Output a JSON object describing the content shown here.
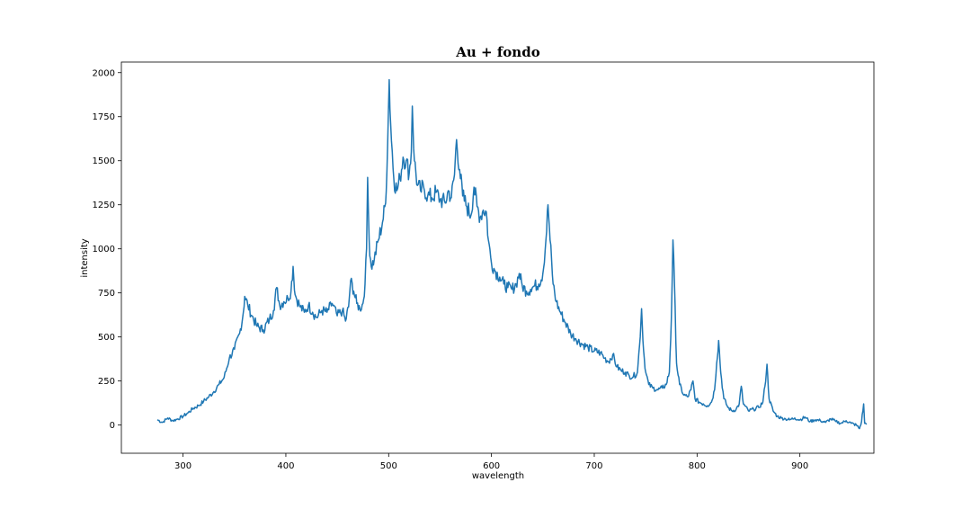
{
  "chart_data": {
    "type": "line",
    "title": "Au + fondo",
    "xlabel": "wavelength",
    "ylabel": "intensity",
    "xlim": [
      240,
      972
    ],
    "ylim": [
      -160,
      2060
    ],
    "xticks": [
      300,
      400,
      500,
      600,
      700,
      800,
      900
    ],
    "yticks": [
      0,
      250,
      500,
      750,
      1000,
      1250,
      1500,
      1750,
      2000
    ],
    "grid": false,
    "line_color": "#1f77b4",
    "series": [
      {
        "points": [
          [
            275,
            30
          ],
          [
            280,
            15
          ],
          [
            285,
            40
          ],
          [
            290,
            25
          ],
          [
            295,
            35
          ],
          [
            300,
            50
          ],
          [
            305,
            70
          ],
          [
            310,
            95
          ],
          [
            315,
            110
          ],
          [
            320,
            135
          ],
          [
            325,
            160
          ],
          [
            330,
            190
          ],
          [
            335,
            230
          ],
          [
            340,
            270
          ],
          [
            345,
            380
          ],
          [
            350,
            430
          ],
          [
            355,
            520
          ],
          [
            358,
            610
          ],
          [
            360,
            730
          ],
          [
            363,
            680
          ],
          [
            367,
            620
          ],
          [
            372,
            560
          ],
          [
            378,
            540
          ],
          [
            384,
            600
          ],
          [
            388,
            650
          ],
          [
            391,
            780
          ],
          [
            394,
            680
          ],
          [
            398,
            700
          ],
          [
            402,
            720
          ],
          [
            405,
            760
          ],
          [
            407,
            900
          ],
          [
            409,
            740
          ],
          [
            414,
            670
          ],
          [
            418,
            640
          ],
          [
            422,
            680
          ],
          [
            426,
            640
          ],
          [
            430,
            610
          ],
          [
            435,
            650
          ],
          [
            440,
            640
          ],
          [
            445,
            690
          ],
          [
            450,
            620
          ],
          [
            455,
            650
          ],
          [
            458,
            590
          ],
          [
            461,
            670
          ],
          [
            463,
            820
          ],
          [
            466,
            760
          ],
          [
            469,
            690
          ],
          [
            472,
            660
          ],
          [
            475,
            690
          ],
          [
            477,
            800
          ],
          [
            478.5,
            1000
          ],
          [
            479.5,
            1405
          ],
          [
            481,
            1050
          ],
          [
            483,
            900
          ],
          [
            486,
            940
          ],
          [
            490,
            1050
          ],
          [
            494,
            1150
          ],
          [
            497,
            1260
          ],
          [
            499,
            1600
          ],
          [
            500.5,
            1960
          ],
          [
            502,
            1700
          ],
          [
            505,
            1400
          ],
          [
            508,
            1330
          ],
          [
            511,
            1400
          ],
          [
            514,
            1520
          ],
          [
            517,
            1500
          ],
          [
            520,
            1430
          ],
          [
            522,
            1550
          ],
          [
            523,
            1810
          ],
          [
            525,
            1500
          ],
          [
            528,
            1360
          ],
          [
            531,
            1330
          ],
          [
            534,
            1350
          ],
          [
            538,
            1300
          ],
          [
            542,
            1290
          ],
          [
            546,
            1320
          ],
          [
            550,
            1280
          ],
          [
            555,
            1260
          ],
          [
            558,
            1330
          ],
          [
            561,
            1290
          ],
          [
            564,
            1420
          ],
          [
            566,
            1620
          ],
          [
            569,
            1450
          ],
          [
            572,
            1300
          ],
          [
            576,
            1240
          ],
          [
            580,
            1190
          ],
          [
            583,
            1350
          ],
          [
            586,
            1240
          ],
          [
            589,
            1180
          ],
          [
            592,
            1220
          ],
          [
            595,
            1210
          ],
          [
            597,
            1050
          ],
          [
            600,
            920
          ],
          [
            604,
            870
          ],
          [
            608,
            840
          ],
          [
            612,
            800
          ],
          [
            616,
            780
          ],
          [
            620,
            770
          ],
          [
            624,
            800
          ],
          [
            627,
            860
          ],
          [
            630,
            790
          ],
          [
            634,
            760
          ],
          [
            638,
            770
          ],
          [
            642,
            790
          ],
          [
            646,
            800
          ],
          [
            650,
            860
          ],
          [
            653,
            1050
          ],
          [
            655,
            1250
          ],
          [
            657,
            1050
          ],
          [
            660,
            800
          ],
          [
            663,
            700
          ],
          [
            667,
            640
          ],
          [
            672,
            580
          ],
          [
            677,
            520
          ],
          [
            682,
            490
          ],
          [
            688,
            460
          ],
          [
            694,
            440
          ],
          [
            700,
            420
          ],
          [
            706,
            410
          ],
          [
            710,
            380
          ],
          [
            714,
            360
          ],
          [
            718,
            400
          ],
          [
            722,
            330
          ],
          [
            726,
            310
          ],
          [
            730,
            300
          ],
          [
            734,
            280
          ],
          [
            738,
            275
          ],
          [
            742,
            300
          ],
          [
            744,
            450
          ],
          [
            746,
            660
          ],
          [
            748,
            420
          ],
          [
            750,
            300
          ],
          [
            753,
            230
          ],
          [
            757,
            210
          ],
          [
            762,
            200
          ],
          [
            766,
            210
          ],
          [
            770,
            230
          ],
          [
            773,
            300
          ],
          [
            775,
            600
          ],
          [
            776.5,
            1050
          ],
          [
            778,
            800
          ],
          [
            780,
            350
          ],
          [
            783,
            230
          ],
          [
            787,
            170
          ],
          [
            791,
            160
          ],
          [
            794,
            200
          ],
          [
            796,
            250
          ],
          [
            798,
            150
          ],
          [
            802,
            130
          ],
          [
            806,
            120
          ],
          [
            810,
            110
          ],
          [
            814,
            130
          ],
          [
            817,
            200
          ],
          [
            819,
            350
          ],
          [
            821,
            480
          ],
          [
            823,
            300
          ],
          [
            826,
            150
          ],
          [
            830,
            100
          ],
          [
            834,
            80
          ],
          [
            838,
            90
          ],
          [
            841,
            120
          ],
          [
            843,
            220
          ],
          [
            845,
            120
          ],
          [
            850,
            80
          ],
          [
            855,
            90
          ],
          [
            860,
            100
          ],
          [
            864,
            130
          ],
          [
            866,
            220
          ],
          [
            868,
            345
          ],
          [
            870,
            150
          ],
          [
            874,
            80
          ],
          [
            878,
            50
          ],
          [
            882,
            40
          ],
          [
            886,
            35
          ],
          [
            890,
            30
          ],
          [
            895,
            40
          ],
          [
            900,
            30
          ],
          [
            905,
            45
          ],
          [
            910,
            20
          ],
          [
            915,
            30
          ],
          [
            920,
            25
          ],
          [
            925,
            15
          ],
          [
            930,
            35
          ],
          [
            935,
            20
          ],
          [
            940,
            10
          ],
          [
            945,
            25
          ],
          [
            950,
            10
          ],
          [
            955,
            0
          ],
          [
            958,
            -20
          ],
          [
            960,
            20
          ],
          [
            962,
            120
          ],
          [
            963,
            10
          ],
          [
            965,
            5
          ]
        ]
      }
    ]
  }
}
